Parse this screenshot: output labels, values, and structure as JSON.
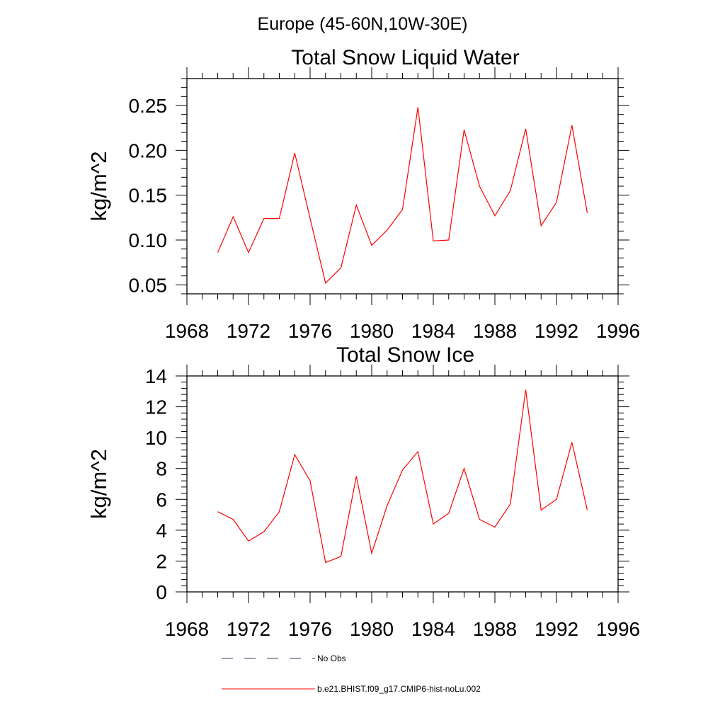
{
  "figure": {
    "title": "Europe (45-60N,10W-30E)"
  },
  "chart_data": [
    {
      "type": "line",
      "title": "Total Snow Liquid Water",
      "xlabel": "",
      "ylabel": "kg/m^2",
      "xlim": [
        1968,
        1996
      ],
      "ylim": [
        0.04,
        0.28
      ],
      "xticks": [
        1968,
        1972,
        1976,
        1980,
        1984,
        1988,
        1992,
        1996
      ],
      "xtick_labels": [
        "1968",
        "1972",
        "1976",
        "1980",
        "1984",
        "1988",
        "1992",
        "1996"
      ],
      "yticks": [
        0.05,
        0.1,
        0.15,
        0.2,
        0.25
      ],
      "ytick_labels": [
        "0.05",
        "0.10",
        "0.15",
        "0.20",
        "0.25"
      ],
      "grid": false,
      "series": [
        {
          "name": "b.e21.BHIST.f09_g17.CMIP6-hist-noLu.002",
          "color": "#ff0000",
          "x": [
            1970,
            1971,
            1972,
            1973,
            1974,
            1975,
            1976,
            1977,
            1978,
            1979,
            1980,
            1981,
            1982,
            1983,
            1984,
            1985,
            1986,
            1987,
            1988,
            1989,
            1990,
            1991,
            1992,
            1993,
            1994
          ],
          "values": [
            0.086,
            0.126,
            0.086,
            0.124,
            0.124,
            0.197,
            0.124,
            0.052,
            0.069,
            0.139,
            0.094,
            0.111,
            0.134,
            0.248,
            0.099,
            0.1,
            0.223,
            0.16,
            0.127,
            0.155,
            0.224,
            0.116,
            0.142,
            0.228,
            0.13
          ]
        }
      ]
    },
    {
      "type": "line",
      "title": "Total Snow Ice",
      "xlabel": "",
      "ylabel": "kg/m^2",
      "xlim": [
        1968,
        1996
      ],
      "ylim": [
        0,
        14
      ],
      "xticks": [
        1968,
        1972,
        1976,
        1980,
        1984,
        1988,
        1992,
        1996
      ],
      "xtick_labels": [
        "1968",
        "1972",
        "1976",
        "1980",
        "1984",
        "1988",
        "1992",
        "1996"
      ],
      "yticks": [
        0,
        2,
        4,
        6,
        8,
        10,
        12,
        14
      ],
      "ytick_labels": [
        "0",
        "2",
        "4",
        "6",
        "8",
        "10",
        "12",
        "14"
      ],
      "grid": false,
      "series": [
        {
          "name": "b.e21.BHIST.f09_g17.CMIP6-hist-noLu.002",
          "color": "#ff0000",
          "x": [
            1970,
            1971,
            1972,
            1973,
            1974,
            1975,
            1976,
            1977,
            1978,
            1979,
            1980,
            1981,
            1982,
            1983,
            1984,
            1985,
            1986,
            1987,
            1988,
            1989,
            1990,
            1991,
            1992,
            1993,
            1994
          ],
          "values": [
            5.2,
            4.7,
            3.3,
            3.9,
            5.2,
            8.9,
            7.2,
            1.9,
            2.3,
            7.5,
            2.5,
            5.6,
            7.9,
            9.1,
            4.4,
            5.1,
            8.0,
            4.7,
            4.2,
            5.7,
            13.1,
            5.3,
            6.0,
            9.7,
            5.3
          ]
        }
      ]
    }
  ],
  "legend": {
    "placement": "bottom",
    "entries": [
      {
        "label": "No Obs",
        "color": "#3a3a6e",
        "style": "dashed"
      },
      {
        "label": "b.e21.BHIST.f09_g17.CMIP6-hist-noLu.002",
        "color": "#ff0000",
        "style": "solid"
      }
    ]
  }
}
